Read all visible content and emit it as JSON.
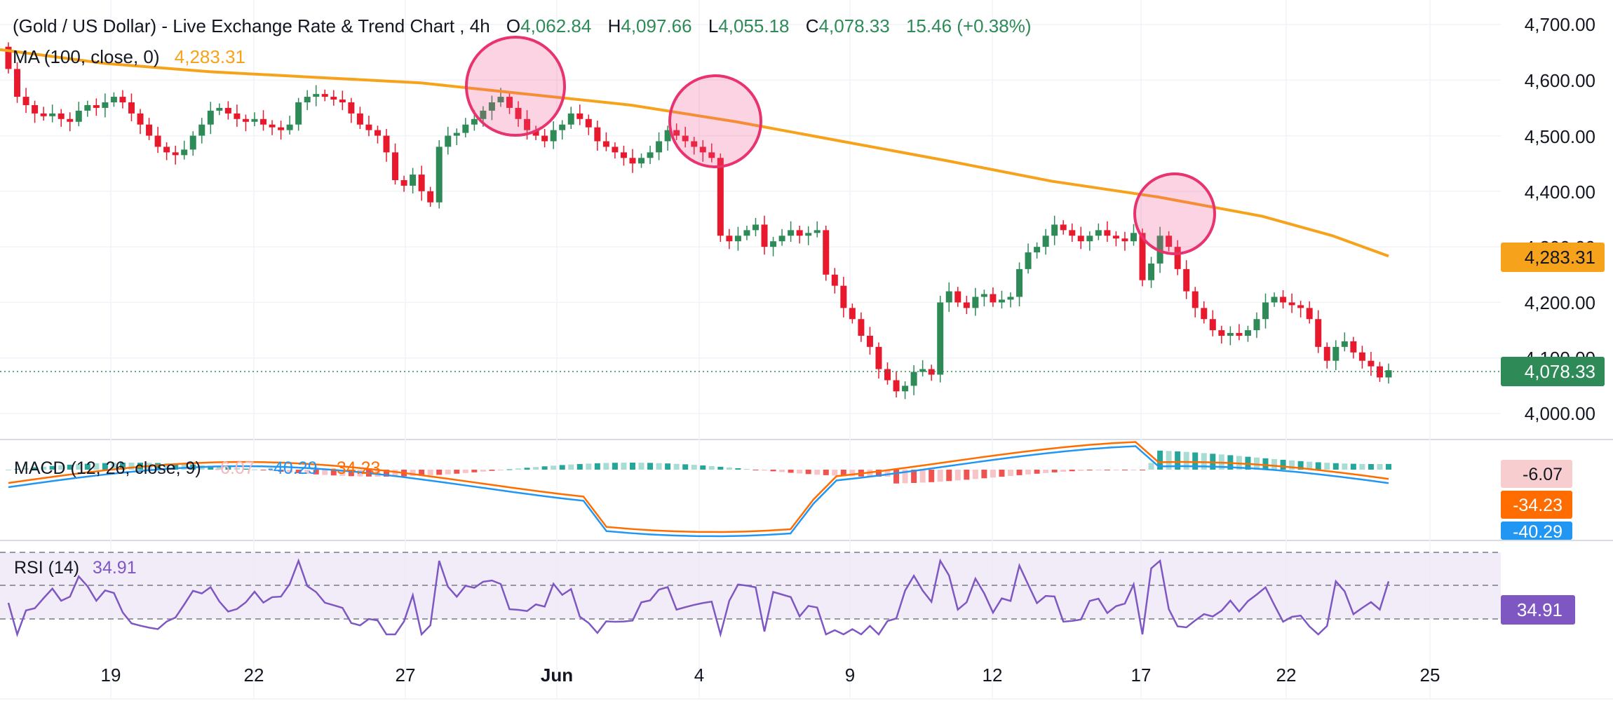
{
  "header": {
    "symbol": "(Gold / US Dollar) - Live Exchange Rate & Trend Chart",
    "interval": "4h",
    "o_label": "O",
    "o_value": "4,062.84",
    "h_label": "H",
    "h_value": "4,097.66",
    "l_label": "L",
    "l_value": "4,055.18",
    "c_label": "C",
    "c_value": "4,078.33",
    "change": "15.46 (+0.38%)"
  },
  "ma": {
    "label": "MA (100, close, 0)",
    "value": "4,283.31",
    "tag": "4,283.31"
  },
  "price_tag": "4,078.33",
  "price_axis": [
    "4,700.00",
    "4,600.00",
    "4,500.00",
    "4,400.00",
    "4,300.00",
    "4,200.00",
    "4,100.00",
    "4,000.00"
  ],
  "macd": {
    "label": "MACD (12, 26, close, 9)",
    "hist": "-6.07",
    "macd": "-40.29",
    "signal": "-34.23",
    "tag_hist": "-6.07",
    "tag_signal": "-34.23",
    "tag_macd": "-40.29"
  },
  "rsi": {
    "label": "RSI (14)",
    "value": "34.91",
    "tag": "34.91"
  },
  "time_axis": [
    "19",
    "22",
    "27",
    "Jun",
    "4",
    "9",
    "12",
    "17",
    "22",
    "25"
  ],
  "colors": {
    "up": "#26a69a",
    "up_body": "#2e8b57",
    "down": "#e8192c",
    "ma": "#f7a21b",
    "macd": "#2196f3",
    "signal": "#ff6d00",
    "rsi": "#7e57c2",
    "circle": "#e8336f"
  },
  "chart_data": {
    "type": "candlestick",
    "timeframe": "4h",
    "ylim": [
      3960,
      4720
    ],
    "closes": [
      4620,
      4570,
      4555,
      4540,
      4535,
      4540,
      4530,
      4525,
      4545,
      4555,
      4550,
      4560,
      4570,
      4560,
      4540,
      4520,
      4500,
      4480,
      4470,
      4465,
      4475,
      4500,
      4520,
      4545,
      4550,
      4540,
      4530,
      4525,
      4530,
      4520,
      4515,
      4510,
      4520,
      4560,
      4570,
      4575,
      4570,
      4565,
      4560,
      4540,
      4520,
      4510,
      4500,
      4470,
      4420,
      4410,
      4430,
      4400,
      4380,
      4480,
      4500,
      4505,
      4520,
      4530,
      4545,
      4560,
      4570,
      4550,
      4530,
      4510,
      4500,
      4490,
      4510,
      4520,
      4540,
      4530,
      4515,
      4490,
      4480,
      4470,
      4460,
      4450,
      4460,
      4470,
      4490,
      4510,
      4500,
      4490,
      4480,
      4470,
      4460,
      4320,
      4310,
      4320,
      4330,
      4340,
      4300,
      4310,
      4320,
      4330,
      4320,
      4325,
      4330,
      4250,
      4230,
      4190,
      4170,
      4140,
      4120,
      4080,
      4060,
      4040,
      4050,
      4075,
      4080,
      4070,
      4200,
      4220,
      4200,
      4190,
      4210,
      4215,
      4200,
      4205,
      4210,
      4260,
      4290,
      4300,
      4320,
      4340,
      4330,
      4320,
      4310,
      4320,
      4330,
      4320,
      4315,
      4310,
      4325,
      4240,
      4270,
      4320,
      4300,
      4260,
      4220,
      4190,
      4170,
      4150,
      4140,
      4145,
      4140,
      4150,
      4170,
      4200,
      4210,
      4200,
      4195,
      4190,
      4170,
      4120,
      4095,
      4120,
      4130,
      4110,
      4095,
      4085,
      4065,
      4078
    ],
    "ma100_points": [
      [
        0,
        4655
      ],
      [
        150,
        4630
      ],
      [
        300,
        4615
      ],
      [
        450,
        4605
      ],
      [
        600,
        4595
      ],
      [
        750,
        4575
      ],
      [
        900,
        4555
      ],
      [
        1050,
        4525
      ],
      [
        1200,
        4490
      ],
      [
        1350,
        4455
      ],
      [
        1500,
        4418
      ],
      [
        1650,
        4390
      ],
      [
        1800,
        4355
      ],
      [
        1900,
        4320
      ],
      [
        1980,
        4283.31
      ]
    ],
    "macd_hist_last": -6.07,
    "macd_last": -40.29,
    "signal_last": -34.23,
    "rsi_last": 34.91,
    "rsi_levels": [
      70,
      50,
      30
    ]
  }
}
